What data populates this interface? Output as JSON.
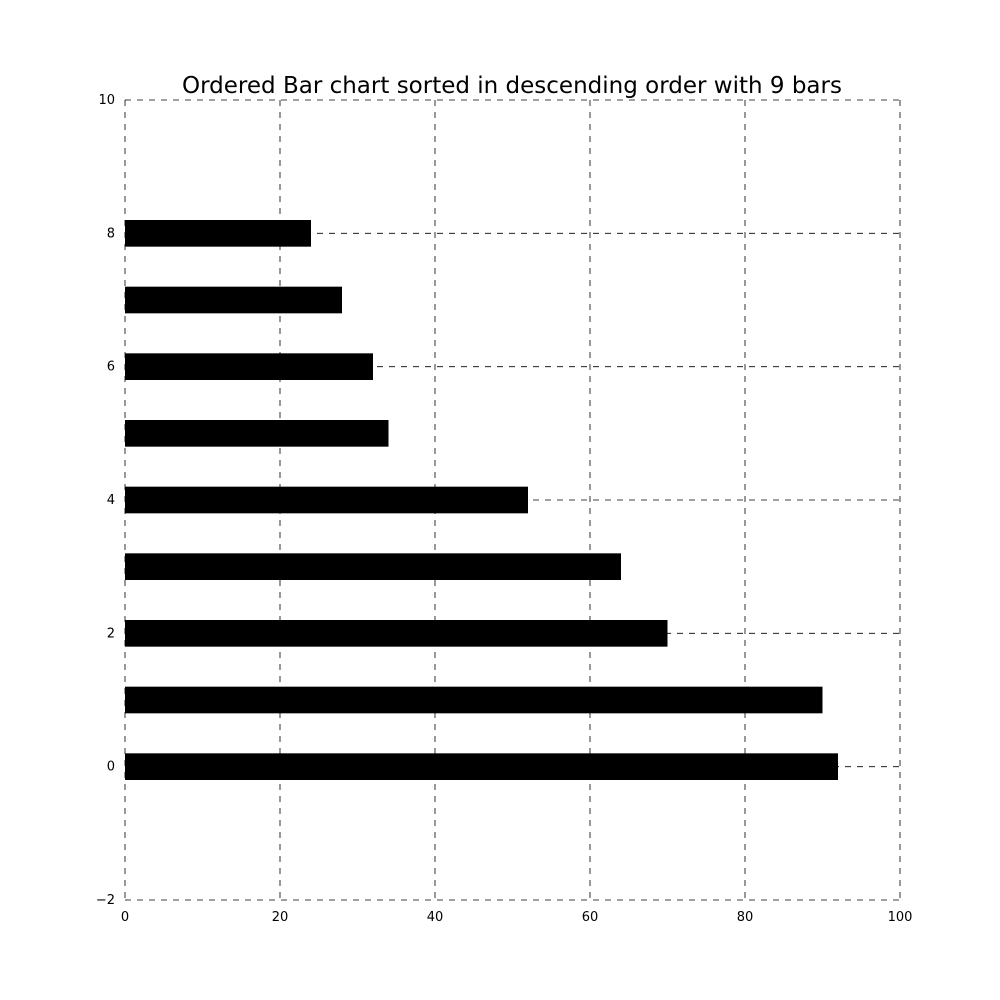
{
  "chart_data": {
    "type": "bar",
    "orientation": "horizontal",
    "title": "Ordered Bar chart sorted in descending order with 9 bars",
    "xlabel": "",
    "ylabel": "",
    "categories": [
      0,
      1,
      2,
      3,
      4,
      5,
      6,
      7,
      8
    ],
    "values": [
      92,
      90,
      70,
      64,
      52,
      34,
      32,
      28,
      24
    ],
    "bar_color": "#000000",
    "xlim": [
      0,
      100
    ],
    "ylim": [
      -2,
      10
    ],
    "x_ticks": [
      0,
      20,
      40,
      60,
      80,
      100
    ],
    "x_tick_labels": [
      "0",
      "20",
      "40",
      "60",
      "80",
      "100"
    ],
    "y_ticks": [
      -2,
      0,
      2,
      4,
      6,
      8,
      10
    ],
    "y_tick_labels": [
      "−2",
      "0",
      "2",
      "4",
      "6",
      "8",
      "10"
    ],
    "grid": true,
    "grid_style": "dashed"
  }
}
